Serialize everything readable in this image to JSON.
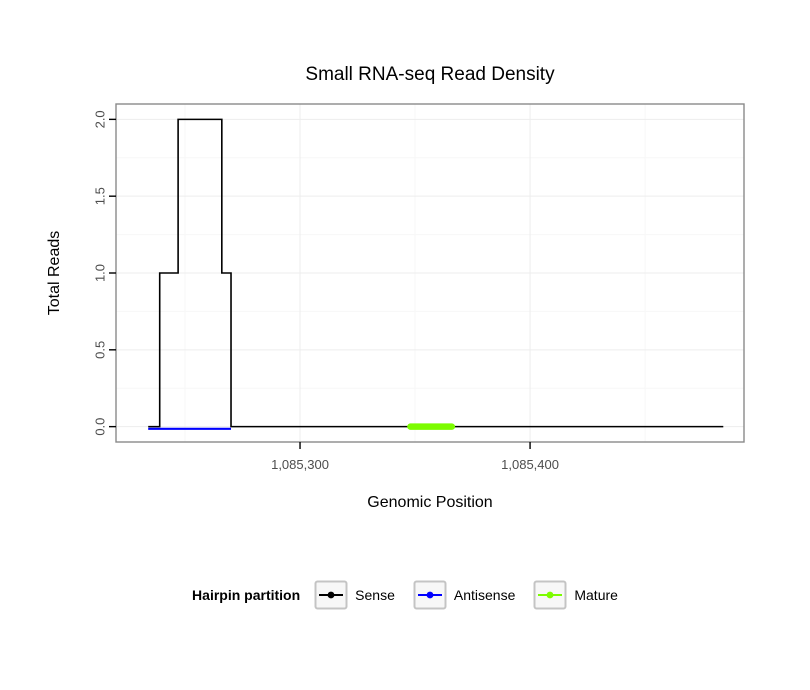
{
  "chart_data": {
    "type": "line",
    "title": "Small RNA-seq Read Density",
    "xlabel": "Genomic Position",
    "ylabel": "Total Reads",
    "xlim": [
      1085220,
      1085493
    ],
    "ylim": [
      -0.1,
      2.1
    ],
    "grid": true,
    "x_ticks": [
      {
        "value": 1085300,
        "label": "1,085,300"
      },
      {
        "value": 1085400,
        "label": "1,085,400"
      }
    ],
    "y_ticks": [
      {
        "value": 0.0,
        "label": "0.0"
      },
      {
        "value": 0.5,
        "label": "0.5"
      },
      {
        "value": 1.0,
        "label": "1.0"
      },
      {
        "value": 1.5,
        "label": "1.5"
      },
      {
        "value": 2.0,
        "label": "2.0"
      }
    ],
    "x_minor_ticks": [
      1085250,
      1085350,
      1085450
    ],
    "y_minor_ticks": [
      0.25,
      0.75,
      1.25,
      1.75
    ],
    "series": [
      {
        "name": "Antisense",
        "color": "#0000ff",
        "line_width": 2.2,
        "points": [
          [
            1085234,
            0
          ],
          [
            1085270,
            0
          ]
        ]
      },
      {
        "name": "Sense",
        "color": "#000000",
        "line_width": 1.6,
        "points": [
          [
            1085234,
            0
          ],
          [
            1085239,
            0
          ],
          [
            1085239,
            1
          ],
          [
            1085247,
            1
          ],
          [
            1085247,
            2
          ],
          [
            1085266,
            2
          ],
          [
            1085266,
            1
          ],
          [
            1085270,
            1
          ],
          [
            1085270,
            0
          ],
          [
            1085484,
            0
          ]
        ]
      },
      {
        "name": "Mature",
        "color": "#7cfc00",
        "line_width": 6.5,
        "points": [
          [
            1085348,
            0
          ],
          [
            1085366,
            0
          ]
        ]
      }
    ],
    "legend": {
      "title": "Hairpin partition",
      "entries": [
        {
          "label": "Sense",
          "color": "#000000"
        },
        {
          "label": "Antisense",
          "color": "#0000ff"
        },
        {
          "label": "Mature",
          "color": "#7cfc00"
        }
      ]
    }
  },
  "colors": {
    "panel_border": "#8a8a8a",
    "grid_major": "#ededed",
    "grid_minor": "#f7f7f7",
    "tick": "#000000",
    "tick_label": "#4d4d4d",
    "legend_key_bg": "#f7f7f7",
    "legend_key_border": "#c4c4c4"
  }
}
